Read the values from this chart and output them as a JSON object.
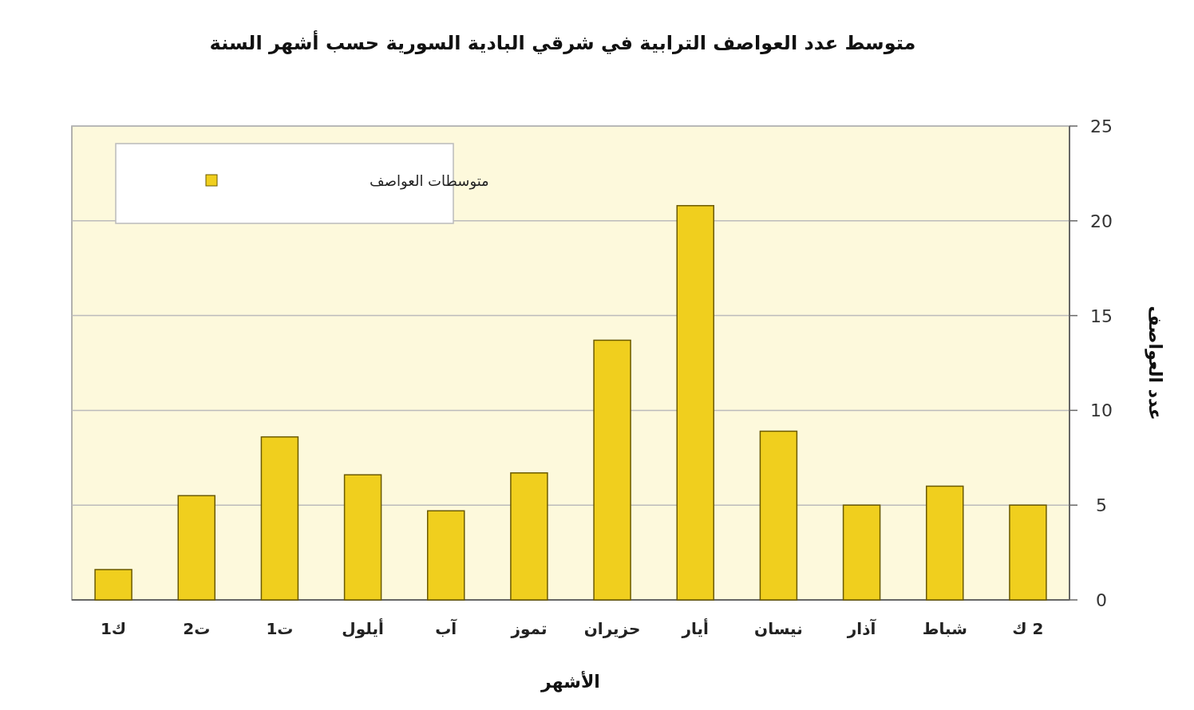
{
  "chart_data": {
    "type": "bar",
    "title": "متوسط عدد العواصف الترابية في شرقي البادية السورية حسب أشهر السنة",
    "xlabel": "الأشهر",
    "ylabel": "عدد العواصف",
    "categories": [
      "ك1",
      "ت2",
      "ت1",
      "أيلول",
      "آب",
      "تموز",
      "حزيران",
      "أيار",
      "نيسان",
      "آذار",
      "شباط",
      "2 ك"
    ],
    "series": [
      {
        "name": "متوسطات العواصف",
        "color": "#f0cf1e",
        "values": [
          1.6,
          5.5,
          8.6,
          6.6,
          4.7,
          6.7,
          13.7,
          20.8,
          8.9,
          5.0,
          6.0,
          5.0
        ]
      }
    ],
    "ylim": [
      0,
      25
    ],
    "yticks": [
      0,
      5,
      10,
      15,
      20,
      25
    ],
    "grid": "y",
    "legend": "top left"
  }
}
